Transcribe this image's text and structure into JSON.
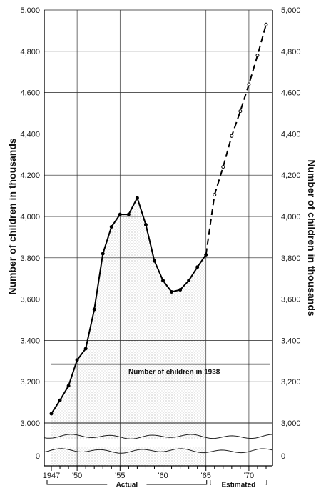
{
  "chart_data": {
    "type": "line",
    "ylabel": "Number of children in thousands",
    "ylabel_right": "Number of children in thousands",
    "ylim": [
      3000,
      5000
    ],
    "y_ticks": [
      3000,
      3200,
      3400,
      3600,
      3800,
      4000,
      4200,
      4400,
      4600,
      4800,
      5000
    ],
    "y_tick_labels": [
      "3,000",
      "3,200",
      "3,400",
      "3,600",
      "3,800",
      "4,000",
      "4,200",
      "4,400",
      "4,600",
      "4,800",
      "5,000"
    ],
    "zero_label": "0",
    "xlim": [
      1947,
      1972
    ],
    "x_ticks": [
      1947,
      1950,
      1955,
      1960,
      1965,
      1970
    ],
    "x_tick_labels": [
      "1947",
      "'50",
      "'55",
      "'60",
      "'65",
      "'70"
    ],
    "grid": true,
    "series": [
      {
        "name": "Actual",
        "style": "solid",
        "x": [
          1947,
          1948,
          1949,
          1950,
          1951,
          1952,
          1953,
          1954,
          1955,
          1956,
          1957,
          1958,
          1959,
          1960,
          1961,
          1962,
          1963,
          1964,
          1965
        ],
        "values": [
          3045,
          3110,
          3180,
          3305,
          3360,
          3550,
          3820,
          3950,
          4010,
          4010,
          4090,
          3960,
          3785,
          3690,
          3635,
          3645,
          3690,
          3755,
          3815
        ]
      },
      {
        "name": "Estimated",
        "style": "dashed",
        "x": [
          1966,
          1967,
          1968,
          1969,
          1970,
          1971,
          1972
        ],
        "values": [
          4105,
          4240,
          4390,
          4510,
          4640,
          4780,
          4930
        ]
      }
    ],
    "reference_line": {
      "label": "Number of children in 1938",
      "value": 3285
    },
    "periods": [
      {
        "label": "Actual",
        "from": 1947,
        "to": 1965
      },
      {
        "label": "Estimated",
        "from": 1966,
        "to": 1972
      }
    ]
  }
}
